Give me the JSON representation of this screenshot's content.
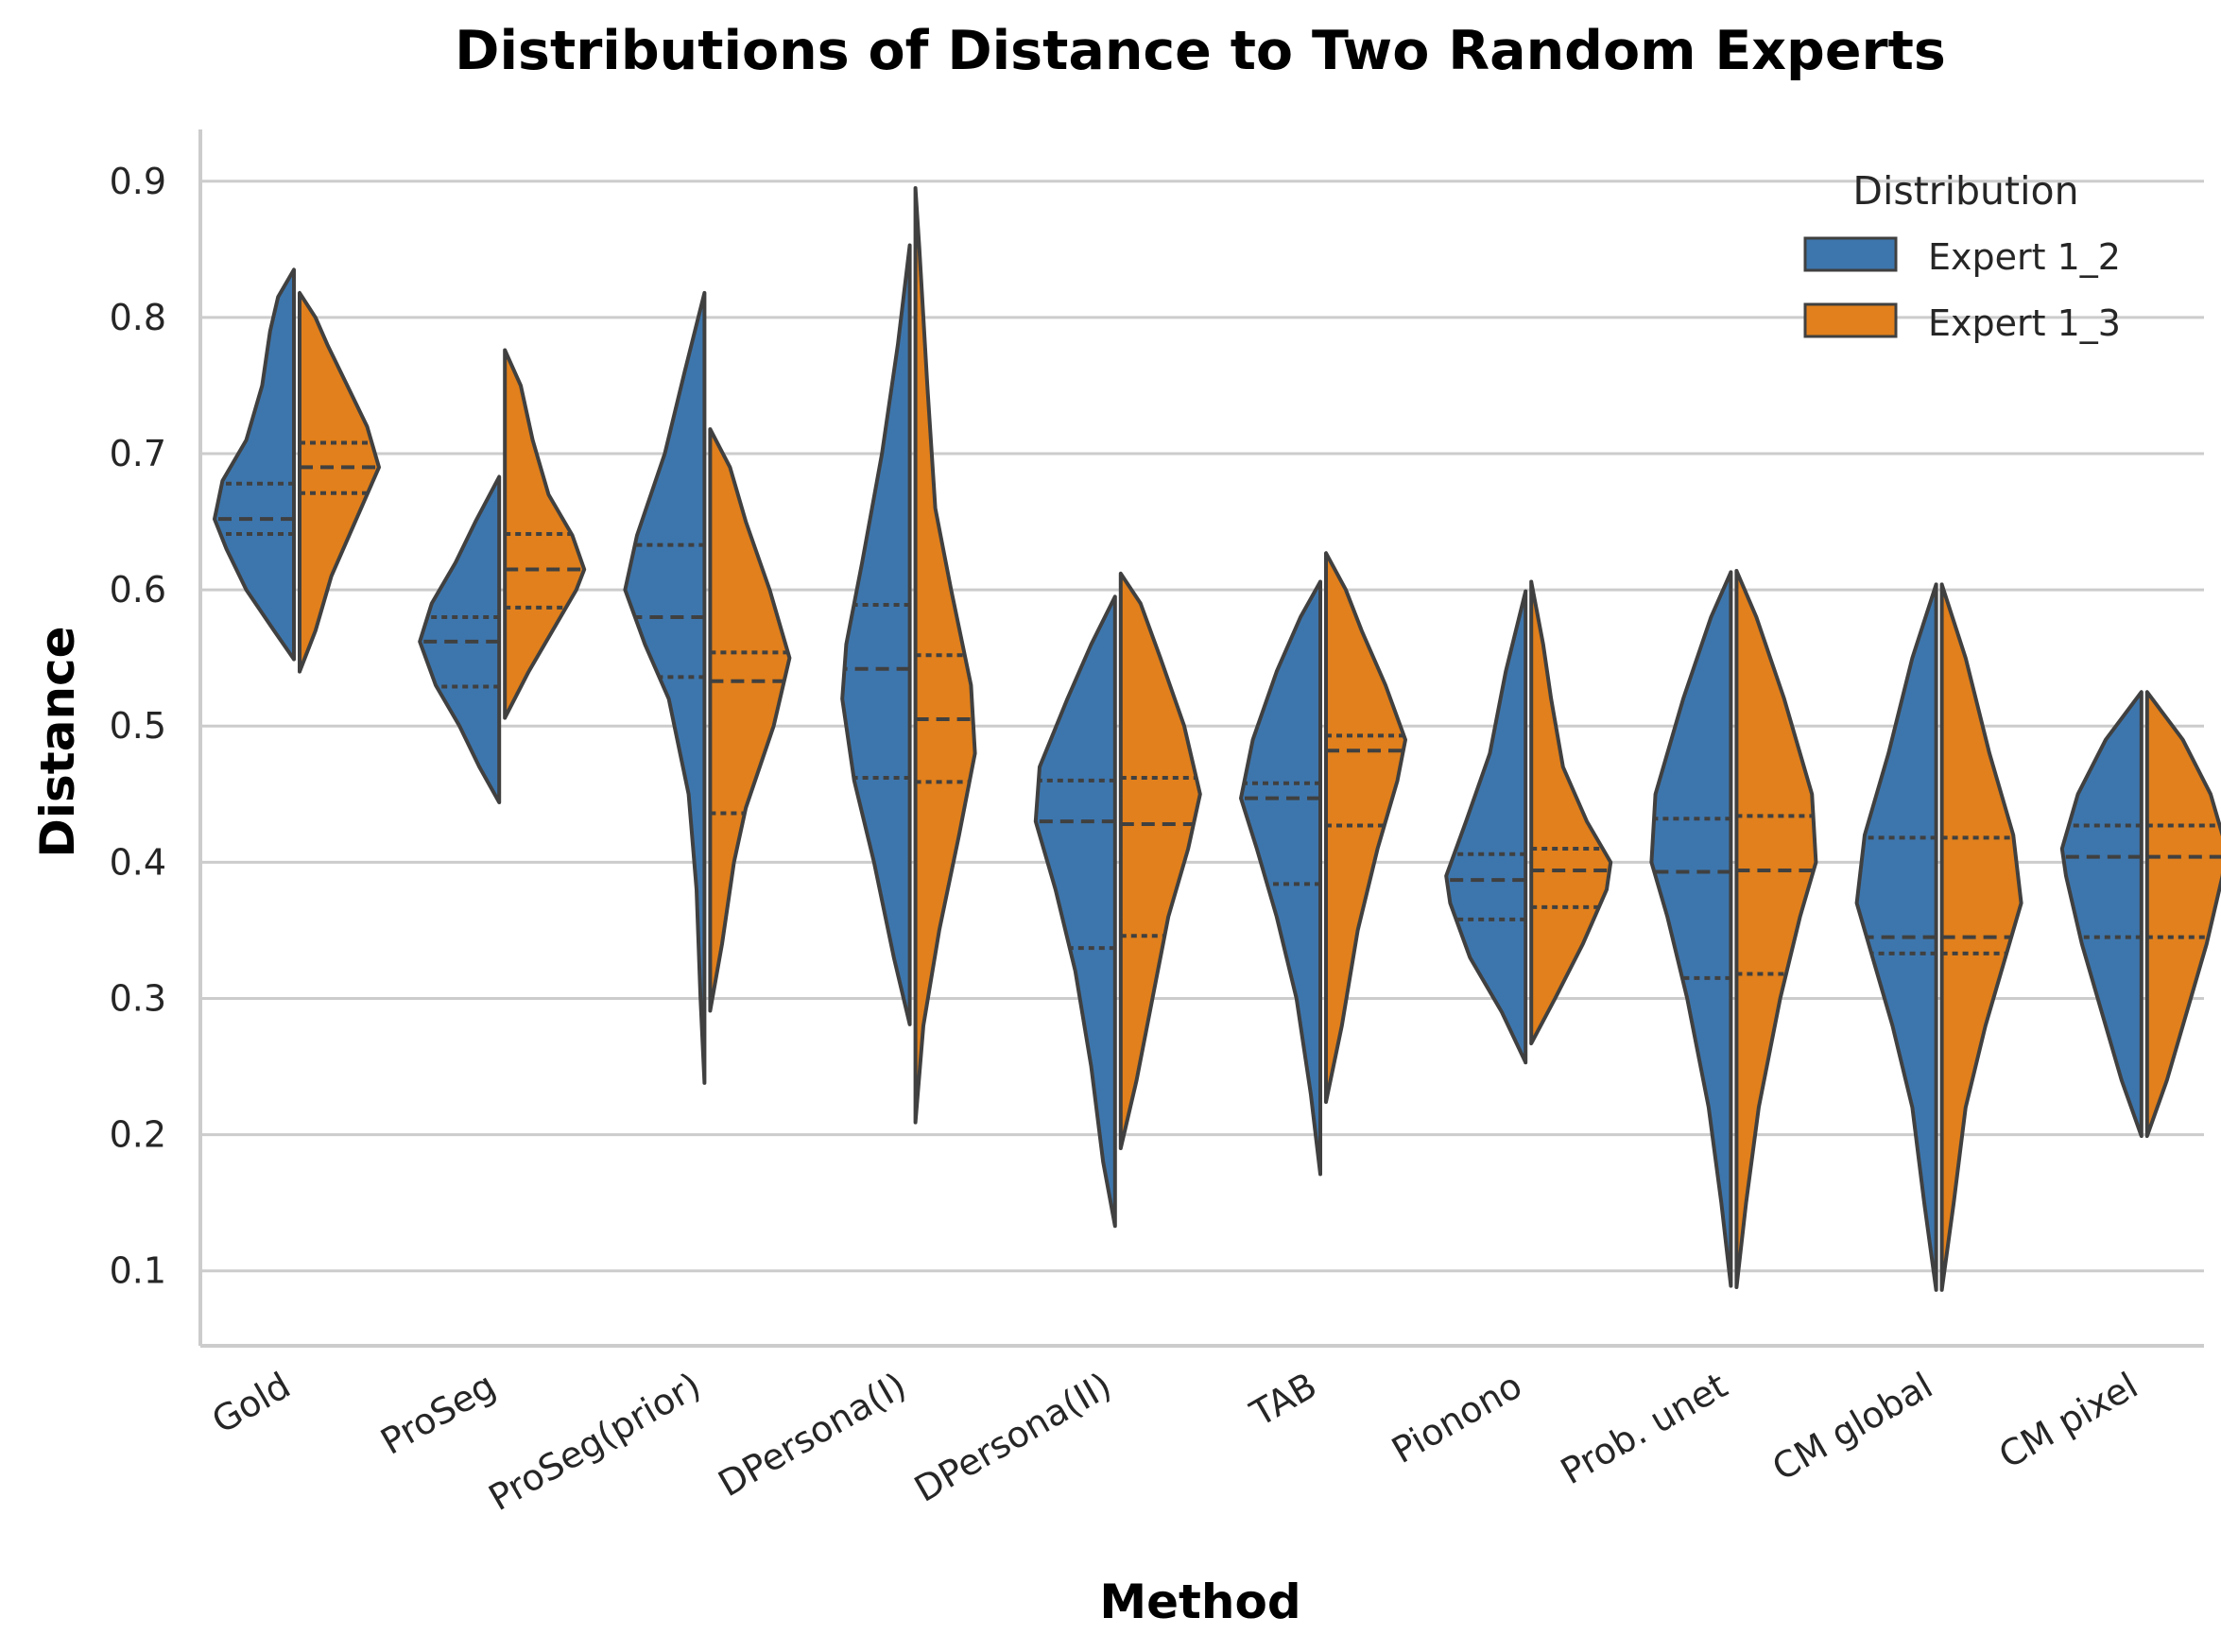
{
  "chart_data": {
    "type": "violin",
    "title": "Distributions of Distance to Two Random Experts",
    "xlabel": "Method",
    "ylabel": "Distance",
    "ylim": [
      0.045,
      0.938
    ],
    "yticks": [
      0.1,
      0.2,
      0.3,
      0.4,
      0.5,
      0.6,
      0.7,
      0.8,
      0.9
    ],
    "ytick_labels": [
      "0.1",
      "0.2",
      "0.3",
      "0.4",
      "0.5",
      "0.6",
      "0.7",
      "0.8",
      "0.9"
    ],
    "grid": "horizontal",
    "legend_placement": "top-right",
    "legend_title": "Distribution",
    "categories": [
      "Gold",
      "ProSeg",
      "ProSeg(prior)",
      "DPersona(I)",
      "DPersona(II)",
      "TAB",
      "Pionono",
      "Prob. unet",
      "CM global",
      "CM pixel"
    ],
    "series": [
      {
        "name": "Expert 1_2",
        "color": "#3d76ad",
        "side": "left",
        "stats": [
          {
            "min": 0.549,
            "max": 0.835,
            "q1": 0.641,
            "median": 0.652,
            "q3": 0.678
          },
          {
            "min": 0.444,
            "max": 0.683,
            "q1": 0.529,
            "median": 0.562,
            "q3": 0.58
          },
          {
            "min": 0.238,
            "max": 0.818,
            "q1": 0.536,
            "median": 0.58,
            "q3": 0.633
          },
          {
            "min": 0.281,
            "max": 0.853,
            "q1": 0.462,
            "median": 0.542,
            "q3": 0.589
          },
          {
            "min": 0.133,
            "max": 0.595,
            "q1": 0.337,
            "median": 0.43,
            "q3": 0.46
          },
          {
            "min": 0.171,
            "max": 0.606,
            "q1": 0.384,
            "median": 0.447,
            "q3": 0.458
          },
          {
            "min": 0.253,
            "max": 0.599,
            "q1": 0.358,
            "median": 0.387,
            "q3": 0.406
          },
          {
            "min": 0.089,
            "max": 0.613,
            "q1": 0.315,
            "median": 0.393,
            "q3": 0.432
          },
          {
            "min": 0.086,
            "max": 0.604,
            "q1": 0.333,
            "median": 0.345,
            "q3": 0.418
          },
          {
            "min": 0.199,
            "max": 0.525,
            "q1": 0.345,
            "median": 0.404,
            "q3": 0.427
          }
        ],
        "violins": [
          [
            [
              0.549,
              0
            ],
            [
              0.57,
              0.25
            ],
            [
              0.6,
              0.6
            ],
            [
              0.63,
              0.85
            ],
            [
              0.652,
              1.0
            ],
            [
              0.68,
              0.9
            ],
            [
              0.71,
              0.6
            ],
            [
              0.75,
              0.4
            ],
            [
              0.79,
              0.3
            ],
            [
              0.815,
              0.2
            ],
            [
              0.835,
              0
            ]
          ],
          [
            [
              0.444,
              0
            ],
            [
              0.47,
              0.25
            ],
            [
              0.5,
              0.5
            ],
            [
              0.53,
              0.8
            ],
            [
              0.562,
              1.0
            ],
            [
              0.59,
              0.85
            ],
            [
              0.62,
              0.55
            ],
            [
              0.65,
              0.3
            ],
            [
              0.683,
              0
            ]
          ],
          [
            [
              0.238,
              0
            ],
            [
              0.3,
              0.05
            ],
            [
              0.38,
              0.1
            ],
            [
              0.45,
              0.2
            ],
            [
              0.52,
              0.45
            ],
            [
              0.56,
              0.75
            ],
            [
              0.6,
              1.0
            ],
            [
              0.64,
              0.85
            ],
            [
              0.7,
              0.5
            ],
            [
              0.76,
              0.25
            ],
            [
              0.818,
              0
            ]
          ],
          [
            [
              0.281,
              0
            ],
            [
              0.33,
              0.2
            ],
            [
              0.4,
              0.45
            ],
            [
              0.46,
              0.7
            ],
            [
              0.52,
              0.85
            ],
            [
              0.56,
              0.8
            ],
            [
              0.62,
              0.6
            ],
            [
              0.7,
              0.35
            ],
            [
              0.78,
              0.15
            ],
            [
              0.853,
              0
            ]
          ],
          [
            [
              0.133,
              0
            ],
            [
              0.18,
              0.15
            ],
            [
              0.25,
              0.3
            ],
            [
              0.32,
              0.5
            ],
            [
              0.38,
              0.75
            ],
            [
              0.43,
              1.0
            ],
            [
              0.47,
              0.95
            ],
            [
              0.52,
              0.6
            ],
            [
              0.56,
              0.3
            ],
            [
              0.595,
              0
            ]
          ],
          [
            [
              0.171,
              0
            ],
            [
              0.23,
              0.12
            ],
            [
              0.3,
              0.3
            ],
            [
              0.36,
              0.55
            ],
            [
              0.41,
              0.8
            ],
            [
              0.447,
              1.0
            ],
            [
              0.49,
              0.85
            ],
            [
              0.54,
              0.55
            ],
            [
              0.58,
              0.25
            ],
            [
              0.606,
              0
            ]
          ],
          [
            [
              0.253,
              0
            ],
            [
              0.29,
              0.3
            ],
            [
              0.33,
              0.7
            ],
            [
              0.37,
              0.95
            ],
            [
              0.39,
              1.0
            ],
            [
              0.43,
              0.75
            ],
            [
              0.48,
              0.45
            ],
            [
              0.54,
              0.25
            ],
            [
              0.599,
              0
            ]
          ],
          [
            [
              0.089,
              0
            ],
            [
              0.15,
              0.12
            ],
            [
              0.22,
              0.28
            ],
            [
              0.3,
              0.55
            ],
            [
              0.36,
              0.8
            ],
            [
              0.4,
              1.0
            ],
            [
              0.45,
              0.95
            ],
            [
              0.52,
              0.6
            ],
            [
              0.58,
              0.25
            ],
            [
              0.613,
              0
            ]
          ],
          [
            [
              0.086,
              0
            ],
            [
              0.15,
              0.15
            ],
            [
              0.22,
              0.3
            ],
            [
              0.28,
              0.55
            ],
            [
              0.33,
              0.8
            ],
            [
              0.37,
              1.0
            ],
            [
              0.42,
              0.9
            ],
            [
              0.48,
              0.6
            ],
            [
              0.55,
              0.3
            ],
            [
              0.604,
              0
            ]
          ],
          [
            [
              0.199,
              0
            ],
            [
              0.24,
              0.25
            ],
            [
              0.29,
              0.5
            ],
            [
              0.34,
              0.75
            ],
            [
              0.39,
              0.95
            ],
            [
              0.41,
              1.0
            ],
            [
              0.45,
              0.8
            ],
            [
              0.49,
              0.45
            ],
            [
              0.525,
              0
            ]
          ]
        ]
      },
      {
        "name": "Expert 1_3",
        "color": "#e1801c",
        "side": "right",
        "stats": [
          {
            "min": 0.54,
            "max": 0.818,
            "q1": 0.671,
            "median": 0.69,
            "q3": 0.708
          },
          {
            "min": 0.506,
            "max": 0.776,
            "q1": 0.587,
            "median": 0.615,
            "q3": 0.641
          },
          {
            "min": 0.291,
            "max": 0.718,
            "q1": 0.436,
            "median": 0.533,
            "q3": 0.554
          },
          {
            "min": 0.209,
            "max": 0.895,
            "q1": 0.459,
            "median": 0.505,
            "q3": 0.552
          },
          {
            "min": 0.19,
            "max": 0.612,
            "q1": 0.346,
            "median": 0.428,
            "q3": 0.462
          },
          {
            "min": 0.224,
            "max": 0.627,
            "q1": 0.427,
            "median": 0.482,
            "q3": 0.493
          },
          {
            "min": 0.267,
            "max": 0.606,
            "q1": 0.367,
            "median": 0.394,
            "q3": 0.41
          },
          {
            "min": 0.088,
            "max": 0.614,
            "q1": 0.318,
            "median": 0.394,
            "q3": 0.434
          },
          {
            "min": 0.086,
            "max": 0.604,
            "q1": 0.333,
            "median": 0.345,
            "q3": 0.418
          },
          {
            "min": 0.199,
            "max": 0.525,
            "q1": 0.345,
            "median": 0.404,
            "q3": 0.427
          }
        ],
        "violins": [
          [
            [
              0.54,
              0
            ],
            [
              0.57,
              0.2
            ],
            [
              0.61,
              0.4
            ],
            [
              0.65,
              0.7
            ],
            [
              0.69,
              1.0
            ],
            [
              0.72,
              0.85
            ],
            [
              0.75,
              0.6
            ],
            [
              0.78,
              0.35
            ],
            [
              0.8,
              0.2
            ],
            [
              0.818,
              0
            ]
          ],
          [
            [
              0.506,
              0
            ],
            [
              0.54,
              0.3
            ],
            [
              0.57,
              0.6
            ],
            [
              0.6,
              0.9
            ],
            [
              0.615,
              1.0
            ],
            [
              0.64,
              0.85
            ],
            [
              0.67,
              0.55
            ],
            [
              0.71,
              0.35
            ],
            [
              0.75,
              0.2
            ],
            [
              0.776,
              0
            ]
          ],
          [
            [
              0.291,
              0
            ],
            [
              0.34,
              0.15
            ],
            [
              0.4,
              0.3
            ],
            [
              0.44,
              0.45
            ],
            [
              0.5,
              0.8
            ],
            [
              0.55,
              1.0
            ],
            [
              0.6,
              0.75
            ],
            [
              0.65,
              0.45
            ],
            [
              0.69,
              0.25
            ],
            [
              0.718,
              0
            ]
          ],
          [
            [
              0.209,
              0
            ],
            [
              0.28,
              0.1
            ],
            [
              0.35,
              0.3
            ],
            [
              0.42,
              0.55
            ],
            [
              0.48,
              0.75
            ],
            [
              0.53,
              0.7
            ],
            [
              0.6,
              0.45
            ],
            [
              0.66,
              0.25
            ],
            [
              0.75,
              0.15
            ],
            [
              0.85,
              0.05
            ],
            [
              0.895,
              0
            ]
          ],
          [
            [
              0.19,
              0
            ],
            [
              0.24,
              0.2
            ],
            [
              0.3,
              0.4
            ],
            [
              0.36,
              0.6
            ],
            [
              0.41,
              0.85
            ],
            [
              0.45,
              1.0
            ],
            [
              0.5,
              0.8
            ],
            [
              0.55,
              0.5
            ],
            [
              0.59,
              0.25
            ],
            [
              0.612,
              0
            ]
          ],
          [
            [
              0.224,
              0
            ],
            [
              0.28,
              0.2
            ],
            [
              0.35,
              0.4
            ],
            [
              0.41,
              0.65
            ],
            [
              0.46,
              0.9
            ],
            [
              0.49,
              1.0
            ],
            [
              0.53,
              0.75
            ],
            [
              0.57,
              0.45
            ],
            [
              0.6,
              0.25
            ],
            [
              0.627,
              0
            ]
          ],
          [
            [
              0.267,
              0
            ],
            [
              0.3,
              0.3
            ],
            [
              0.34,
              0.65
            ],
            [
              0.38,
              0.95
            ],
            [
              0.4,
              1.0
            ],
            [
              0.43,
              0.7
            ],
            [
              0.47,
              0.4
            ],
            [
              0.52,
              0.25
            ],
            [
              0.56,
              0.15
            ],
            [
              0.606,
              0
            ]
          ],
          [
            [
              0.088,
              0
            ],
            [
              0.15,
              0.12
            ],
            [
              0.22,
              0.28
            ],
            [
              0.3,
              0.55
            ],
            [
              0.36,
              0.8
            ],
            [
              0.4,
              1.0
            ],
            [
              0.45,
              0.95
            ],
            [
              0.52,
              0.6
            ],
            [
              0.58,
              0.25
            ],
            [
              0.614,
              0
            ]
          ],
          [
            [
              0.086,
              0
            ],
            [
              0.15,
              0.15
            ],
            [
              0.22,
              0.3
            ],
            [
              0.28,
              0.55
            ],
            [
              0.33,
              0.8
            ],
            [
              0.37,
              1.0
            ],
            [
              0.42,
              0.9
            ],
            [
              0.48,
              0.6
            ],
            [
              0.55,
              0.3
            ],
            [
              0.604,
              0
            ]
          ],
          [
            [
              0.199,
              0
            ],
            [
              0.24,
              0.25
            ],
            [
              0.29,
              0.5
            ],
            [
              0.34,
              0.75
            ],
            [
              0.39,
              0.95
            ],
            [
              0.41,
              1.0
            ],
            [
              0.45,
              0.8
            ],
            [
              0.49,
              0.45
            ],
            [
              0.525,
              0
            ]
          ]
        ]
      }
    ]
  }
}
